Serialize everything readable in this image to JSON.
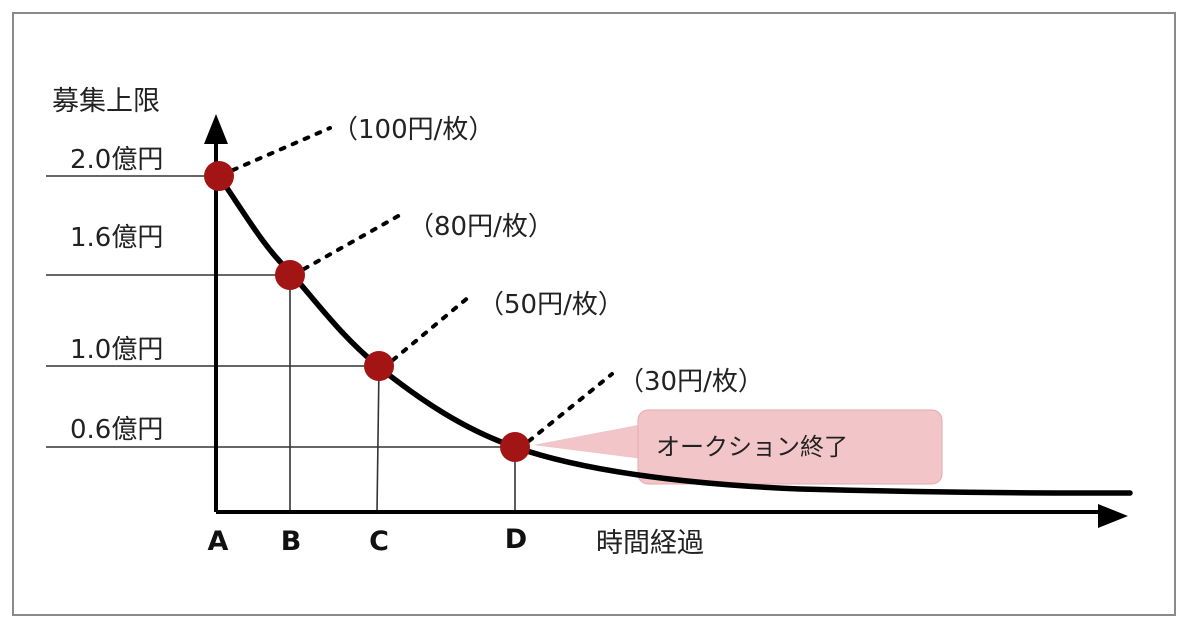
{
  "chart_data": {
    "type": "line",
    "title": "",
    "ylabel": "募集上限",
    "xlabel": "時間経過",
    "y_ticks": [
      "2.0億円",
      "1.6億円",
      "1.0億円",
      "0.6億円"
    ],
    "x_ticks": [
      "A",
      "B",
      "C",
      "D"
    ],
    "points": [
      {
        "x": "A",
        "value": 2.0,
        "annotation": "（100円/枚）"
      },
      {
        "x": "B",
        "value": 1.6,
        "annotation": "（80円/枚）"
      },
      {
        "x": "C",
        "value": 1.0,
        "annotation": "（50円/枚）"
      },
      {
        "x": "D",
        "value": 0.6,
        "annotation": "（30円/枚）"
      }
    ],
    "callout": "オークション終了",
    "colors": {
      "curve": "#000000",
      "marker": "#a31515",
      "callout_fill": "#f2c6c8",
      "callout_border": "#e4a9ac"
    }
  }
}
